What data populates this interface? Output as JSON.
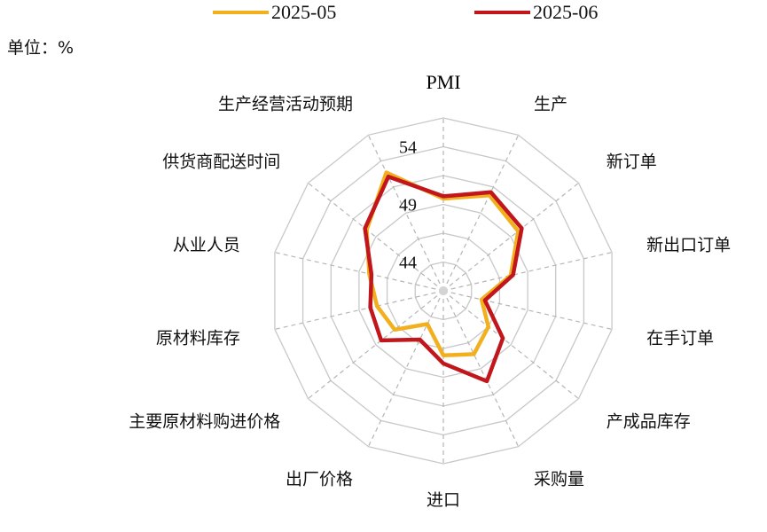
{
  "unit_label": "单位：%",
  "chart_data": {
    "type": "radar",
    "title": "",
    "categories": [
      "PMI",
      "生产",
      "新订单",
      "新出口订单",
      "在手订单",
      "产成品库存",
      "采购量",
      "进口",
      "出厂价格",
      "主要原材料购进价格",
      "原材料库存",
      "从业人员",
      "供货商配送时间",
      "生产经营活动预期"
    ],
    "series": [
      {
        "name": "2025-05",
        "color": "#F2B01E",
        "values": [
          49.5,
          50.7,
          49.8,
          47.5,
          44.9,
          46.5,
          47.6,
          47.1,
          44.7,
          46.9,
          47.4,
          48.1,
          50.0,
          52.9
        ]
      },
      {
        "name": "2025-06",
        "color": "#C0161C",
        "values": [
          49.7,
          51.0,
          50.2,
          47.7,
          45.2,
          48.1,
          50.2,
          47.8,
          46.2,
          48.4,
          48.0,
          47.9,
          50.2,
          52.5
        ]
      }
    ],
    "ticks": [
      44,
      49,
      54
    ],
    "rmin": 41.5,
    "rmax": 56.5,
    "grid": true,
    "legend": "top"
  }
}
